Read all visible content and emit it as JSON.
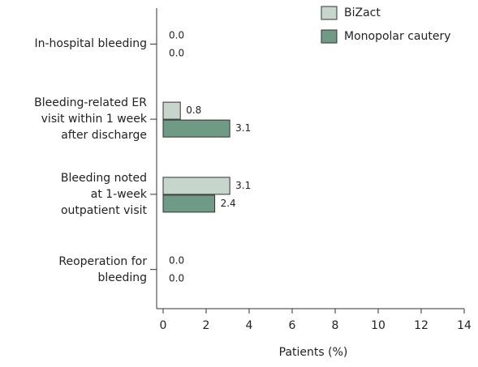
{
  "chart_data": {
    "type": "hbar",
    "categories": [
      "In-hospital bleeding",
      "Bleeding-related ER\nvisit within 1 week\nafter discharge",
      "Bleeding noted\nat 1-week\noutpatient visit",
      "Reoperation for\nbleeding"
    ],
    "series": [
      {
        "name": "BiZact",
        "color": "#c6d6cd",
        "values": [
          0,
          0.8,
          3.1,
          0
        ],
        "value_labels": [
          "0.0",
          "0.8",
          "3.1",
          "0.0"
        ]
      },
      {
        "name": "Monopolar cautery",
        "color": "#6f9a86",
        "values": [
          0,
          3.1,
          2.4,
          0
        ],
        "value_labels": [
          "0.0",
          "3.1",
          "2.4",
          "0.0"
        ]
      }
    ],
    "xlabel": "Patients (%)",
    "xlim": [
      0,
      14
    ],
    "xticks": [
      0,
      2,
      4,
      6,
      8,
      10,
      12,
      14
    ],
    "legend": "upper right",
    "grid": false
  }
}
